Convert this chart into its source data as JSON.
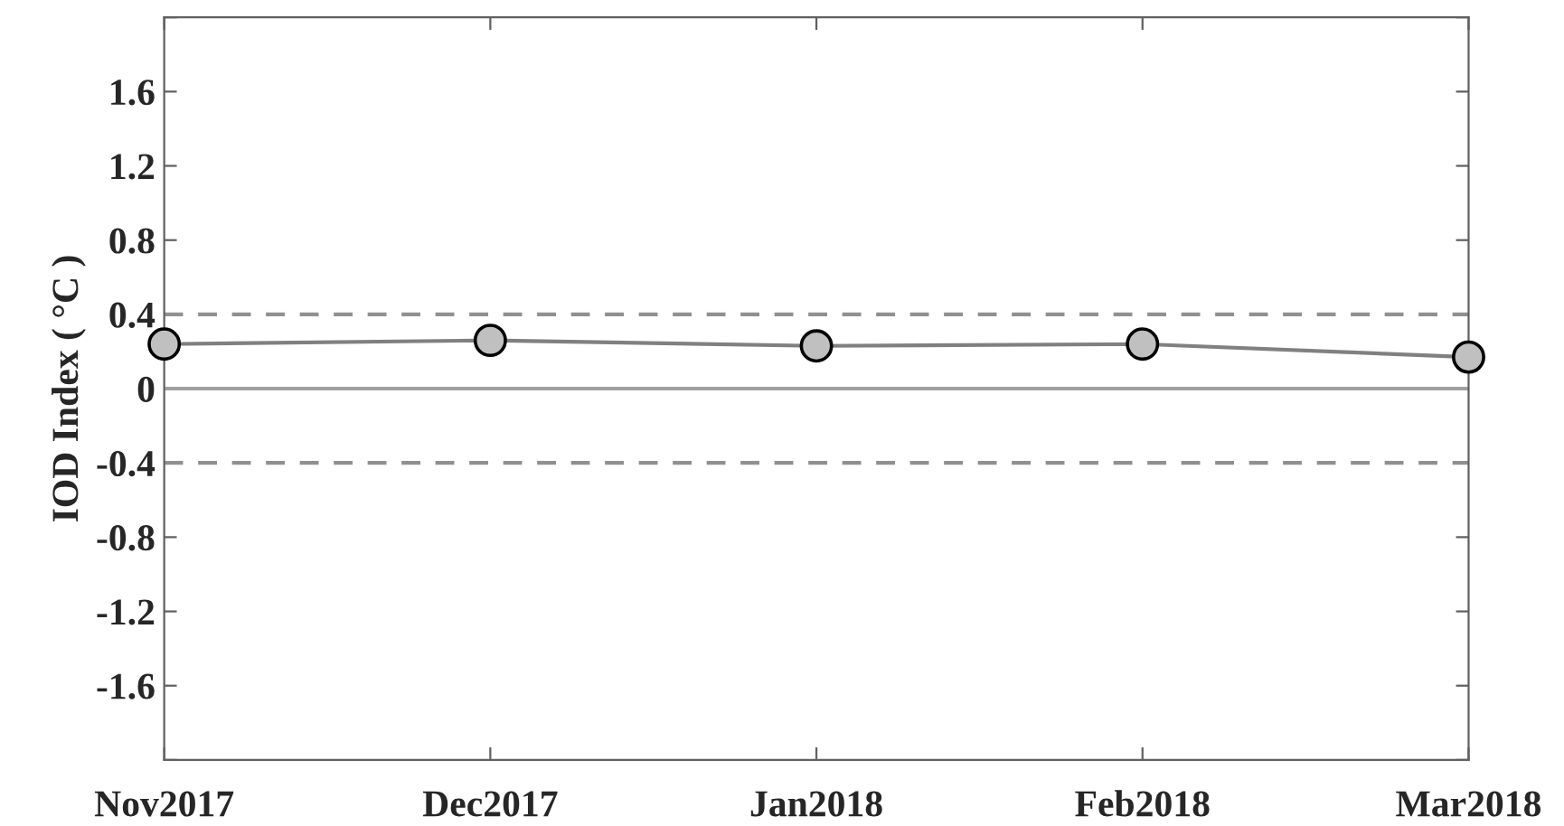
{
  "chart_data": {
    "type": "line",
    "ylabel": "IOD Index ( °C )",
    "categories": [
      "Nov2017",
      "Dec2017",
      "Jan2018",
      "Feb2018",
      "Mar2018"
    ],
    "series": [
      {
        "color": "#808080",
        "values": [
          0.24,
          0.26,
          0.23,
          0.24,
          0.17
        ]
      }
    ],
    "marker": "circle",
    "line_style": "solid",
    "ylim": [
      -2,
      2
    ],
    "yticks": [
      {
        "value": -2,
        "label": null
      },
      -1.6,
      -1.2,
      -0.8,
      -0.4,
      0,
      0.4,
      0.8,
      1.2,
      1.6,
      {
        "value": 2,
        "label": null
      }
    ],
    "ref_lines": [
      {
        "axis": "y",
        "value": 0,
        "color": "#a0a0a0",
        "line_style": "solid"
      },
      {
        "axis": "y",
        "value": 0.4,
        "color": "#909090",
        "line_style": "dashed"
      },
      {
        "axis": "y",
        "value": -0.4,
        "color": "#909090",
        "line_style": "dashed"
      }
    ],
    "grid": false,
    "legend": false
  }
}
